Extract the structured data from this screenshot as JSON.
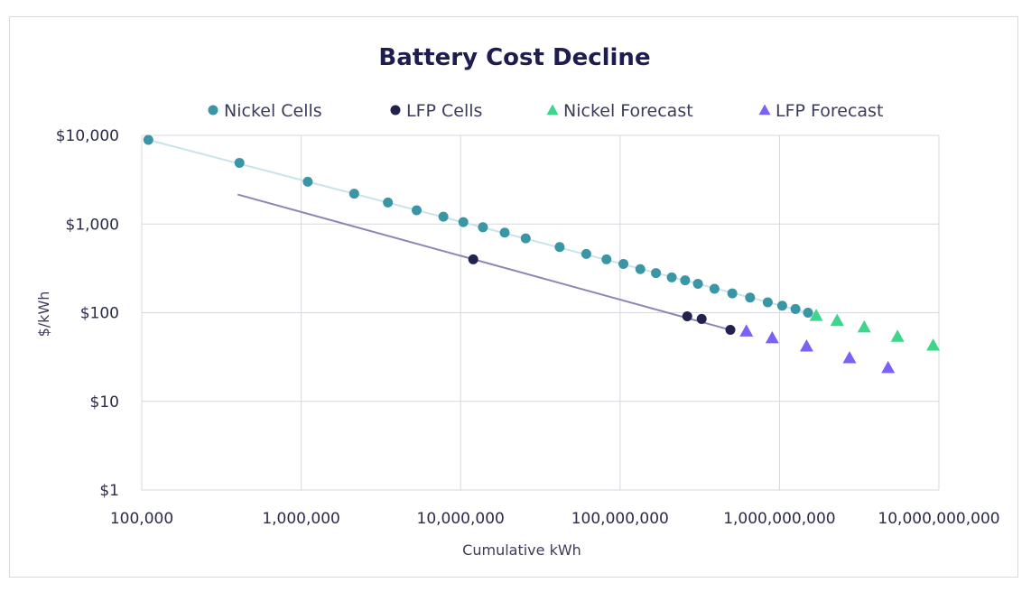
{
  "chart_data": {
    "type": "scatter",
    "title": "Battery Cost Decline",
    "xlabel": "Cumulative kWh",
    "ylabel": "$/kWh",
    "x_scale": "log",
    "y_scale": "log",
    "xlim": [
      100000,
      10000000000
    ],
    "ylim": [
      1,
      10000
    ],
    "x_ticks": [
      {
        "value": 100000,
        "label": "100,000"
      },
      {
        "value": 1000000,
        "label": "1,000,000"
      },
      {
        "value": 10000000,
        "label": "10,000,000"
      },
      {
        "value": 100000000,
        "label": "100,000,000"
      },
      {
        "value": 1000000000,
        "label": "1,000,000,000"
      },
      {
        "value": 10000000000,
        "label": "10,000,000,000"
      }
    ],
    "y_ticks": [
      {
        "value": 1,
        "label": "$1"
      },
      {
        "value": 10,
        "label": "$10"
      },
      {
        "value": 100,
        "label": "$100"
      },
      {
        "value": 1000,
        "label": "$1,000"
      },
      {
        "value": 10000,
        "label": "$10,000"
      }
    ],
    "grid": true,
    "legend_position": "top",
    "series": [
      {
        "name": "Nickel Cells",
        "marker": "circle",
        "color": "#3a96a6",
        "points": [
          [
            110000,
            8900
          ],
          [
            410000,
            4900
          ],
          [
            1100000,
            3000
          ],
          [
            2150000,
            2200
          ],
          [
            3500000,
            1750
          ],
          [
            5300000,
            1430
          ],
          [
            7800000,
            1210
          ],
          [
            10400000,
            1050
          ],
          [
            13800000,
            920
          ],
          [
            18900000,
            800
          ],
          [
            25600000,
            690
          ],
          [
            41800000,
            550
          ],
          [
            61400000,
            460
          ],
          [
            82200000,
            400
          ],
          [
            105000000,
            355
          ],
          [
            134000000,
            310
          ],
          [
            168000000,
            280
          ],
          [
            211000000,
            250
          ],
          [
            256000000,
            232
          ],
          [
            308000000,
            212
          ],
          [
            391000000,
            186
          ],
          [
            506000000,
            165
          ],
          [
            654000000,
            148
          ],
          [
            844000000,
            131
          ],
          [
            1040000000,
            120
          ],
          [
            1260000000,
            110
          ],
          [
            1510000000,
            100
          ]
        ]
      },
      {
        "name": "LFP Cells",
        "marker": "circle",
        "color": "#22224f",
        "points": [
          [
            12000000,
            400
          ],
          [
            264000000,
            91
          ],
          [
            325000000,
            85
          ],
          [
            492000000,
            64
          ]
        ]
      },
      {
        "name": "Nickel Forecast",
        "marker": "triangle",
        "color": "#3dd68c",
        "points": [
          [
            1700000000,
            93
          ],
          [
            2300000000,
            82
          ],
          [
            3400000000,
            69
          ],
          [
            5500000000,
            54
          ],
          [
            9200000000,
            43
          ]
        ]
      },
      {
        "name": "LFP Forecast",
        "marker": "triangle",
        "color": "#7b61f5",
        "points": [
          [
            620000000,
            62
          ],
          [
            900000000,
            52
          ],
          [
            1480000000,
            42
          ],
          [
            2750000000,
            31
          ],
          [
            4800000000,
            24
          ]
        ]
      }
    ],
    "trendlines": [
      {
        "series": "Nickel Cells",
        "color": "#c8e3ea",
        "from": [
          110000,
          8900
        ],
        "to": [
          1510000000,
          100
        ]
      },
      {
        "series": "LFP Cells",
        "color": "#8f84b5",
        "from": [
          400000,
          2150
        ],
        "to": [
          492000000,
          64
        ]
      }
    ]
  }
}
